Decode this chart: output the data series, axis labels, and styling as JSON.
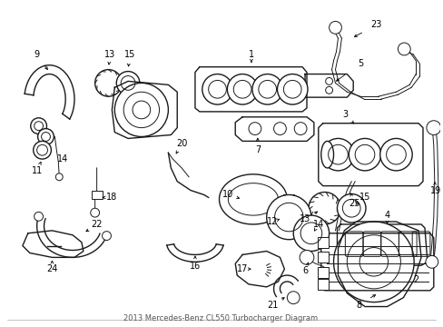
{
  "title": "2013 Mercedes-Benz CL550 Turbocharger Diagram",
  "bg": "#ffffff",
  "lc": "#1a1a1a",
  "figsize": [
    4.89,
    3.6
  ],
  "dpi": 100
}
